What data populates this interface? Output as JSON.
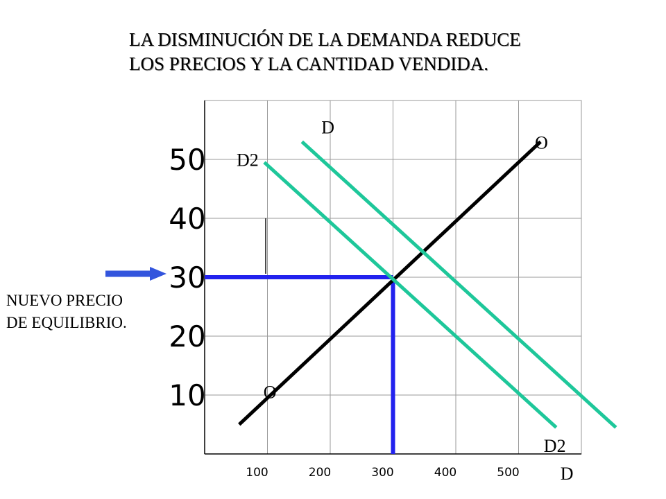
{
  "chart_data": {
    "type": "line",
    "title": [
      "LA DISMINUCIÓN DE LA DEMANDA REDUCE",
      "LOS PRECIOS Y LA CANTIDAD VENDIDA."
    ],
    "xlabel": "",
    "ylabel": "",
    "xlim": [
      0,
      600
    ],
    "ylim": [
      0,
      60
    ],
    "grid": true,
    "x_ticks": [
      100,
      200,
      300,
      400,
      500
    ],
    "x_tick_labels": [
      "100",
      "200",
      "300",
      "400",
      "500"
    ],
    "y_ticks": [
      10,
      20,
      30,
      40,
      50
    ],
    "y_tick_labels": [
      "10",
      "20",
      "30",
      "40",
      "50"
    ],
    "series": [
      {
        "name": "O",
        "color": "#000000",
        "points": [
          [
            55,
            5
          ],
          [
            535,
            53
          ]
        ],
        "labels": [
          "O",
          "O"
        ]
      },
      {
        "name": "D",
        "color": "#1ec79a",
        "points": [
          [
            155,
            53
          ],
          [
            655,
            4.5
          ]
        ],
        "labels": [
          "D",
          "D"
        ]
      },
      {
        "name": "D2",
        "color": "#1ec79a",
        "points": [
          [
            95,
            49.5
          ],
          [
            560,
            4.5
          ]
        ],
        "labels": [
          "D2",
          "D2"
        ]
      }
    ],
    "annotations": {
      "new_price": 30,
      "new_quantity": 300,
      "marker_color": "#2222ee",
      "arrow_color": "#3355dd",
      "note": [
        "NUEVO PRECIO",
        "DE EQUILIBRIO."
      ]
    }
  }
}
